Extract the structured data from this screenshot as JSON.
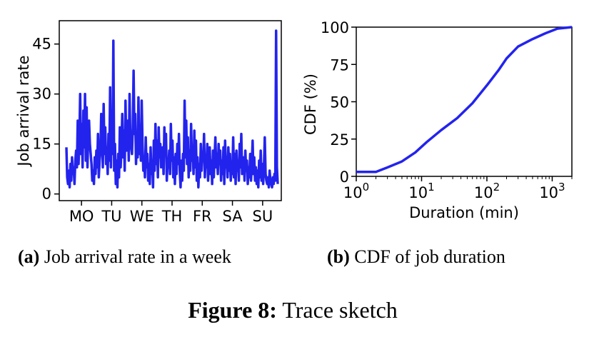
{
  "chart_data": [
    {
      "type": "line",
      "ylabel": "Job arrival rate",
      "xlabel": "",
      "yticks": [
        0,
        15,
        30,
        45
      ],
      "ylim": [
        -2,
        52
      ],
      "xlim": [
        0,
        7
      ],
      "day_labels": [
        "MO",
        "TU",
        "WE",
        "TH",
        "FR",
        "SA",
        "SU"
      ],
      "color": "#2323ee",
      "series": [
        {
          "values": [
            14,
            5,
            3,
            7,
            2,
            9,
            4,
            11,
            6,
            8,
            3,
            10,
            13,
            8,
            22,
            9,
            16,
            30,
            12,
            21,
            8,
            25,
            14,
            30,
            10,
            26,
            8,
            18,
            22,
            15,
            12,
            9,
            4,
            7,
            3,
            11,
            6,
            13,
            8,
            18,
            5,
            10,
            13,
            24,
            17,
            8,
            27,
            12,
            20,
            9,
            14,
            6,
            18,
            10,
            32,
            8,
            22,
            12,
            46,
            7,
            15,
            3,
            10,
            2,
            12,
            5,
            20,
            8,
            14,
            24,
            11,
            19,
            7,
            28,
            13,
            18,
            22,
            10,
            30,
            16,
            14,
            12,
            20,
            37,
            18,
            24,
            9,
            16,
            11,
            29,
            12,
            20,
            10,
            28,
            15,
            7,
            11,
            5,
            17,
            8,
            12,
            4,
            9,
            3,
            14,
            6,
            10,
            2,
            16,
            7,
            21,
            9,
            16,
            5,
            20,
            11,
            15,
            8,
            9,
            14,
            6,
            20,
            12,
            18,
            4,
            10,
            8,
            13,
            6,
            21,
            10,
            16,
            5,
            11,
            3,
            12,
            6,
            15,
            9,
            18,
            7,
            2,
            10,
            4,
            12,
            7,
            28,
            11,
            22,
            9,
            17,
            5,
            13,
            7,
            21,
            10,
            14,
            6,
            19,
            8,
            16,
            4,
            11,
            2,
            9,
            5,
            15,
            7,
            12,
            10,
            18,
            5,
            11,
            8,
            15,
            4,
            9,
            14,
            6,
            10,
            3,
            13,
            5,
            11,
            17,
            8,
            12,
            6,
            15,
            9,
            13,
            4,
            10,
            6,
            14,
            3,
            16,
            8,
            11,
            5,
            14,
            7,
            12,
            4,
            9,
            6,
            17,
            5,
            12,
            3,
            13,
            7,
            10,
            4,
            15,
            8,
            18,
            6,
            9,
            11,
            4,
            13,
            7,
            10,
            3,
            8,
            5,
            12,
            4,
            9,
            16,
            6,
            11,
            4,
            8,
            3,
            7,
            2,
            10,
            5,
            13,
            4,
            9,
            3,
            8,
            17,
            6,
            4,
            3,
            5,
            2,
            7,
            4,
            3,
            2,
            5,
            3,
            6,
            4,
            49,
            8,
            3
          ]
        }
      ]
    },
    {
      "type": "line",
      "ylabel": "CDF (%)",
      "xlabel": "Duration (min)",
      "xscale": "log",
      "xlim": [
        1,
        2000
      ],
      "ylim": [
        0,
        100
      ],
      "yticks": [
        0,
        25,
        50,
        75,
        100
      ],
      "xticks": [
        {
          "value": 1,
          "base": "10",
          "exp": "0"
        },
        {
          "value": 10,
          "base": "10",
          "exp": "1"
        },
        {
          "value": 100,
          "base": "10",
          "exp": "2"
        },
        {
          "value": 1000,
          "base": "10",
          "exp": "3"
        }
      ],
      "color": "#2323ee",
      "series": [
        {
          "x": [
            1,
            1.6,
            2,
            3,
            5,
            8,
            12,
            20,
            35,
            60,
            100,
            150,
            200,
            300,
            500,
            800,
            1200,
            2000
          ],
          "y": [
            3,
            3,
            3,
            6,
            10,
            16,
            23,
            31,
            39,
            49,
            61,
            71,
            79,
            87,
            92,
            96,
            99,
            100
          ]
        }
      ]
    }
  ],
  "captions": {
    "a_label": "(a)",
    "a_text": " Job arrival rate in a week",
    "b_label": "(b)",
    "b_text": " CDF of job duration",
    "figure_label": "Figure 8:",
    "figure_text": " Trace sketch"
  }
}
